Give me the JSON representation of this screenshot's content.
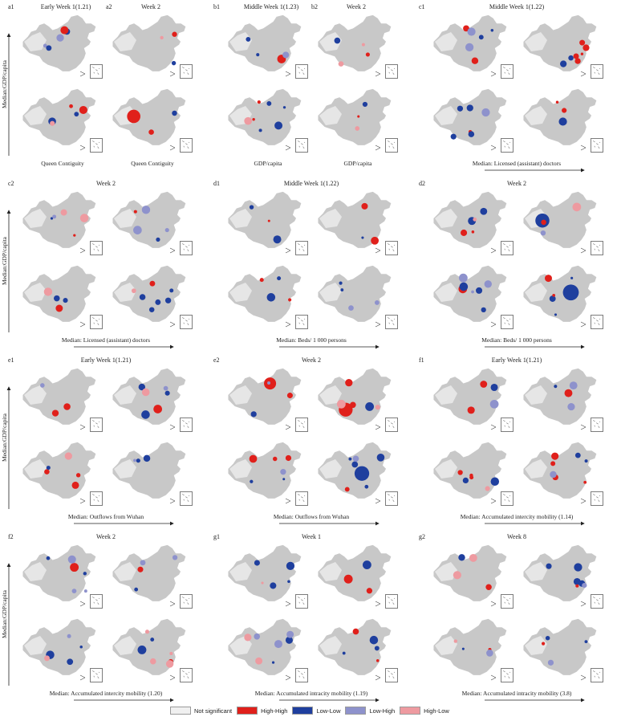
{
  "panels": [
    {
      "id": "a",
      "maps": 4,
      "labels": [
        "a1",
        "a2"
      ],
      "titles": [
        "Early Week 1(1.21)",
        "Week 2"
      ],
      "y_axis": "Median:GDP/capita",
      "bottom": [
        "Queen Contiguity",
        "Queen Contiguity"
      ]
    },
    {
      "id": "b",
      "maps": 4,
      "labels": [
        "b1",
        "b2"
      ],
      "titles": [
        "Middle Week 1(1.23)",
        "Week 2"
      ],
      "y_axis": "",
      "bottom": [
        "GDP/capita",
        "GDP/capita"
      ]
    },
    {
      "id": "c1",
      "maps": 4,
      "labels": [
        "c1"
      ],
      "titles": [
        "Middle Week 1(1.22)"
      ],
      "y_axis": "",
      "bottom": [
        "Median: Licensed (assistant) doctors"
      ]
    },
    {
      "id": "c2",
      "maps": 4,
      "labels": [
        "c2"
      ],
      "titles": [
        "Week 2"
      ],
      "y_axis": "Median:GDP/capita",
      "bottom": [
        "Median: Licensed (assistant) doctors"
      ]
    },
    {
      "id": "d1",
      "maps": 4,
      "labels": [
        "d1"
      ],
      "titles": [
        "Middle Week 1(1.22)"
      ],
      "y_axis": "",
      "bottom": [
        "Median: Beds/ 1 000 persons"
      ]
    },
    {
      "id": "d2",
      "maps": 4,
      "labels": [
        "d2"
      ],
      "titles": [
        "Week 2"
      ],
      "y_axis": "",
      "bottom": [
        "Median: Beds/ 1 000 persons"
      ]
    },
    {
      "id": "e1",
      "maps": 4,
      "labels": [
        "e1"
      ],
      "titles": [
        "Early Week 1(1.21)"
      ],
      "y_axis": "Median:GDP/capita",
      "bottom": [
        "Median: Outflows from Wuhan"
      ]
    },
    {
      "id": "e2",
      "maps": 4,
      "labels": [
        "e2"
      ],
      "titles": [
        "Week 2"
      ],
      "y_axis": "",
      "bottom": [
        "Median: Outflows from Wuhan"
      ]
    },
    {
      "id": "f1",
      "maps": 4,
      "labels": [
        "f1"
      ],
      "titles": [
        "Early Week 1(1.21)"
      ],
      "y_axis": "",
      "bottom": [
        "Median: Accumulated intercity mobility (1.14)"
      ]
    },
    {
      "id": "f2",
      "maps": 4,
      "labels": [
        "f2"
      ],
      "titles": [
        "Week 2"
      ],
      "y_axis": "Median:GDP/capita",
      "bottom": [
        "Median: Accumulated intercity mobility (1.20)"
      ]
    },
    {
      "id": "g1",
      "maps": 4,
      "labels": [
        "g1"
      ],
      "titles": [
        "Week 1"
      ],
      "y_axis": "",
      "bottom": [
        "Median: Accumulated intracity mobility (1.19)"
      ]
    },
    {
      "id": "g2",
      "maps": 4,
      "labels": [
        "g2"
      ],
      "titles": [
        "Week 8"
      ],
      "y_axis": "",
      "bottom": [
        "Median: Accumulated intracity mobility (3.8)"
      ]
    }
  ],
  "legend": [
    {
      "label": "Not significant",
      "color": "#f0f0f0"
    },
    {
      "label": "High-High",
      "color": "#e0201b"
    },
    {
      "label": "Low-Low",
      "color": "#1f3f9e"
    },
    {
      "label": "Low-High",
      "color": "#8e92cc"
    },
    {
      "label": "High-Low",
      "color": "#ee9aa0"
    }
  ],
  "colors": {
    "base": "#c8c8c8",
    "hh": "#e0201b",
    "ll": "#1f3f9e",
    "lh": "#8e92cc",
    "hl": "#ee9aa0"
  }
}
